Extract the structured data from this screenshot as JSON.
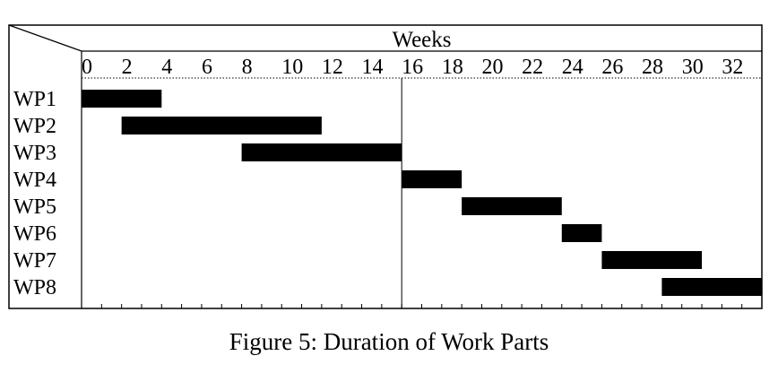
{
  "caption": "Figure 5: Duration of Work Parts",
  "chart_data": {
    "type": "gantt",
    "title": "",
    "xlabel": "Weeks",
    "ylabel": "",
    "xlim": [
      0,
      34
    ],
    "x_ticks": [
      0,
      2,
      4,
      6,
      8,
      10,
      12,
      14,
      16,
      18,
      20,
      22,
      24,
      26,
      28,
      30,
      32
    ],
    "minor_tick_step": 1,
    "grid": false,
    "reference_line_x": 16,
    "bar_color": "#000000",
    "tasks": [
      {
        "name": "WP1",
        "start": 0,
        "end": 4
      },
      {
        "name": "WP2",
        "start": 2,
        "end": 12
      },
      {
        "name": "WP3",
        "start": 8,
        "end": 16
      },
      {
        "name": "WP4",
        "start": 16,
        "end": 19
      },
      {
        "name": "WP5",
        "start": 19,
        "end": 24
      },
      {
        "name": "WP6",
        "start": 24,
        "end": 26
      },
      {
        "name": "WP7",
        "start": 26,
        "end": 31
      },
      {
        "name": "WP8",
        "start": 29,
        "end": 34
      }
    ]
  }
}
